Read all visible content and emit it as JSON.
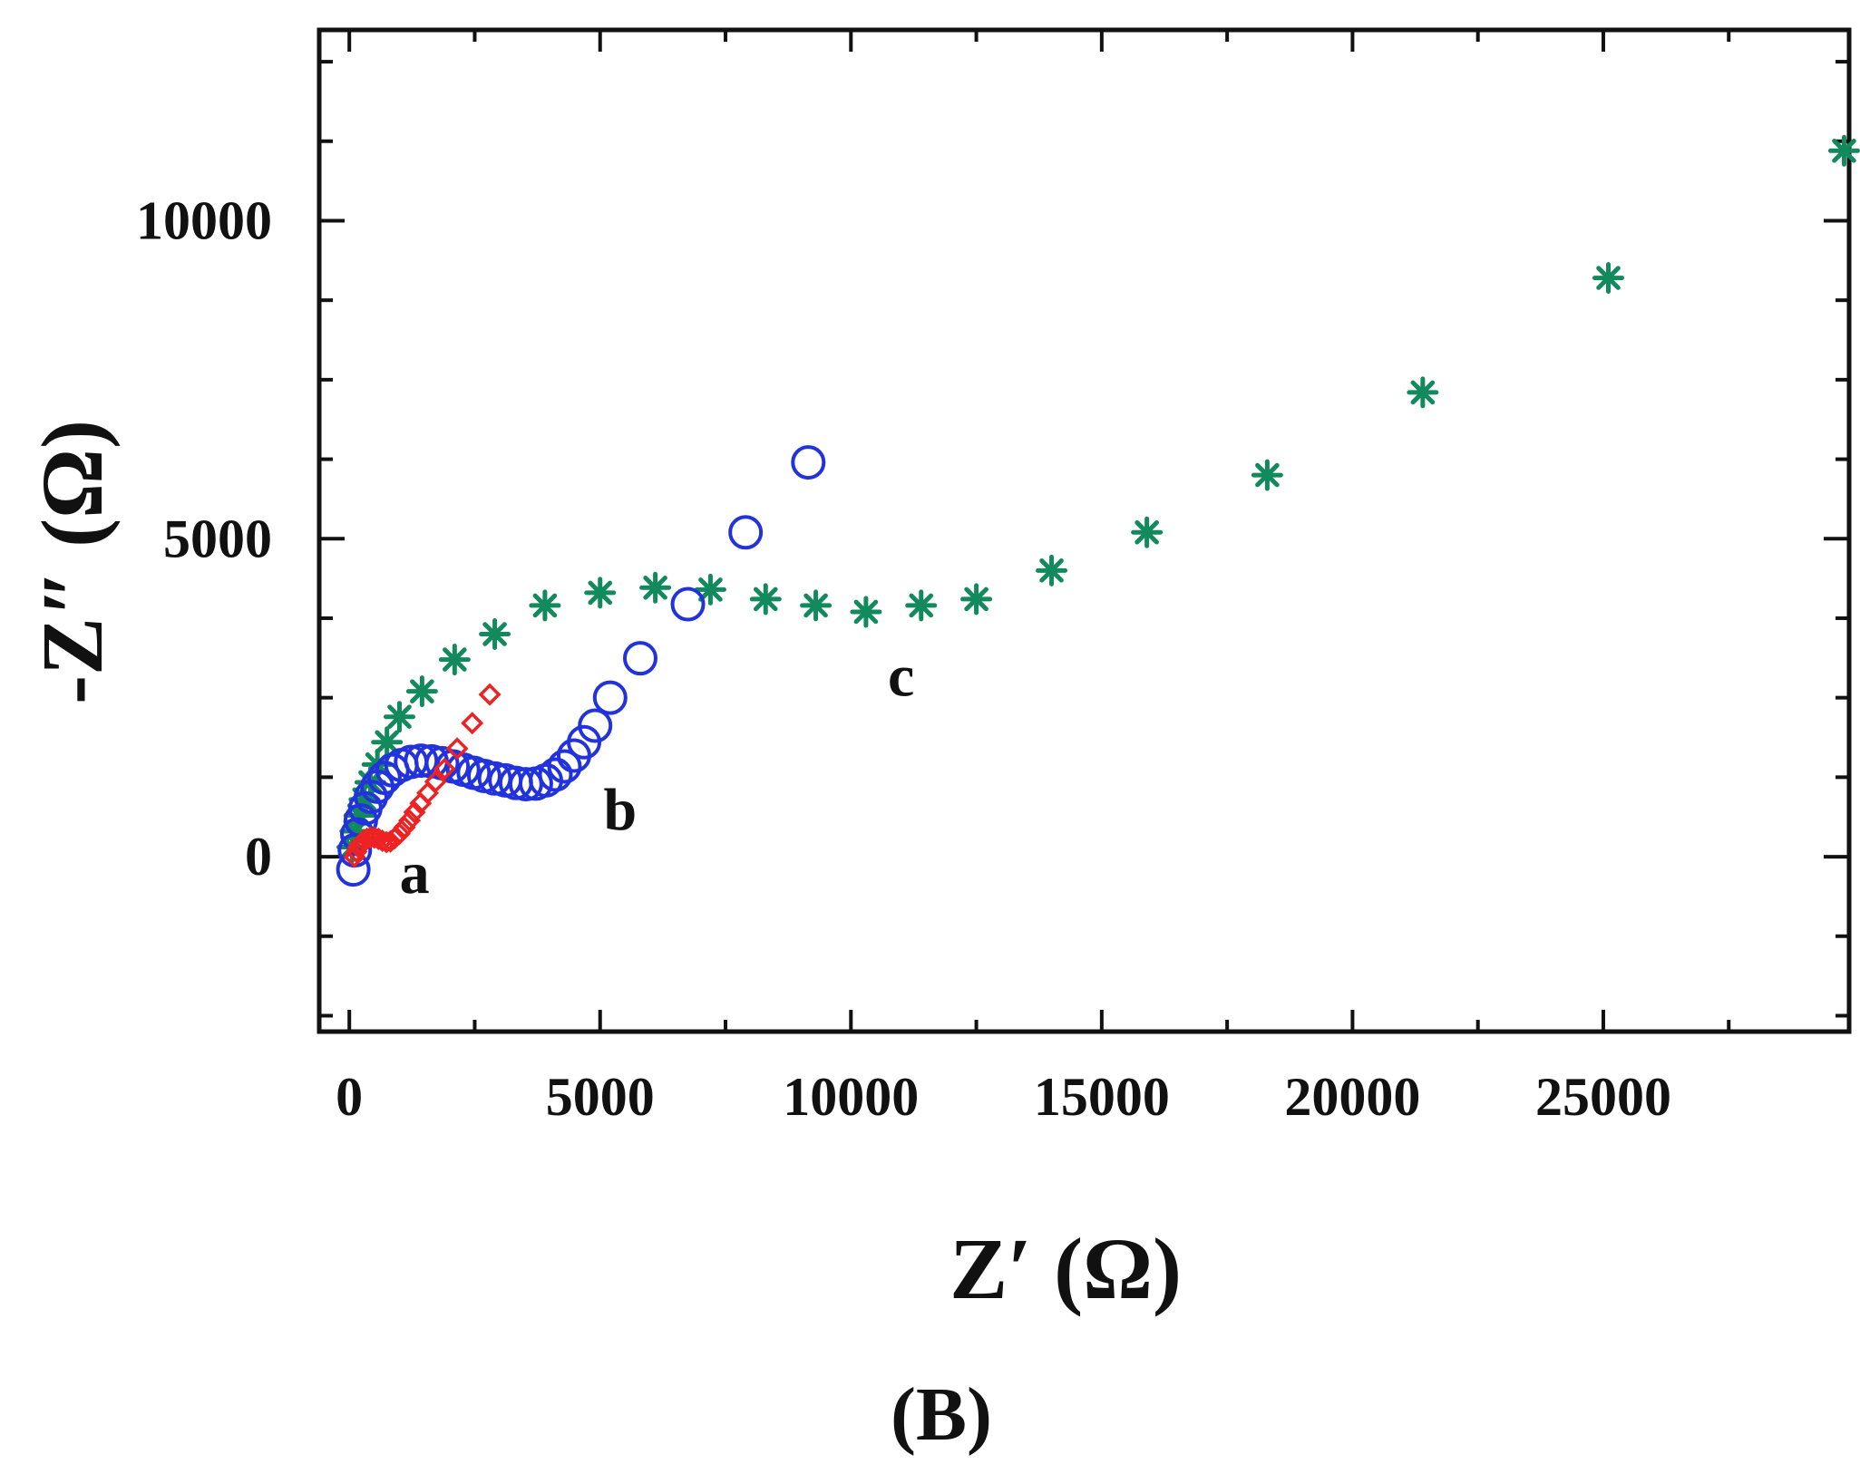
{
  "chart_data": {
    "type": "scatter",
    "title": "",
    "xlabel": "Z′ (Ω)",
    "ylabel": "-Z″ (Ω)",
    "panel_label": "(B)",
    "xlim": [
      -600,
      29900
    ],
    "ylim": [
      -2750,
      13000
    ],
    "x_ticks": [
      0,
      5000,
      10000,
      15000,
      20000,
      25000
    ],
    "x_tick_labels": [
      "0",
      "5000",
      "10000",
      "15000",
      "20000",
      "25000"
    ],
    "y_ticks": [
      0,
      5000,
      10000
    ],
    "y_tick_labels": [
      "0",
      "5000",
      "10000"
    ],
    "grid": false,
    "series": [
      {
        "name": "a",
        "marker": "diamond",
        "color": "#ee2222",
        "points": [
          [
            100,
            0
          ],
          [
            140,
            80
          ],
          [
            180,
            150
          ],
          [
            230,
            210
          ],
          [
            290,
            250
          ],
          [
            350,
            280
          ],
          [
            420,
            300
          ],
          [
            500,
            300
          ],
          [
            580,
            280
          ],
          [
            660,
            250
          ],
          [
            740,
            230
          ],
          [
            820,
            240
          ],
          [
            900,
            290
          ],
          [
            1000,
            360
          ],
          [
            1100,
            460
          ],
          [
            1200,
            570
          ],
          [
            1300,
            700
          ],
          [
            1420,
            840
          ],
          [
            1560,
            1000
          ],
          [
            1720,
            1180
          ],
          [
            1900,
            1380
          ],
          [
            2150,
            1700
          ],
          [
            2450,
            2100
          ],
          [
            2800,
            2550
          ]
        ]
      },
      {
        "name": "b",
        "marker": "circle",
        "color": "#2233dd",
        "points": [
          [
            80,
            -200
          ],
          [
            110,
            100
          ],
          [
            160,
            350
          ],
          [
            230,
            570
          ],
          [
            320,
            760
          ],
          [
            430,
            940
          ],
          [
            560,
            1100
          ],
          [
            700,
            1240
          ],
          [
            860,
            1360
          ],
          [
            1040,
            1440
          ],
          [
            1230,
            1490
          ],
          [
            1430,
            1510
          ],
          [
            1640,
            1500
          ],
          [
            1850,
            1470
          ],
          [
            2060,
            1420
          ],
          [
            2270,
            1370
          ],
          [
            2480,
            1320
          ],
          [
            2690,
            1270
          ],
          [
            2900,
            1230
          ],
          [
            3110,
            1200
          ],
          [
            3320,
            1160
          ],
          [
            3520,
            1140
          ],
          [
            3720,
            1150
          ],
          [
            3920,
            1200
          ],
          [
            4110,
            1290
          ],
          [
            4290,
            1420
          ],
          [
            4480,
            1590
          ],
          [
            4680,
            1800
          ],
          [
            4900,
            2060
          ],
          [
            5200,
            2500
          ],
          [
            5800,
            3120
          ],
          [
            6750,
            3970
          ],
          [
            7900,
            5100
          ],
          [
            9150,
            6200
          ]
        ]
      },
      {
        "name": "c",
        "marker": "asterisk",
        "color": "#138a5e",
        "points": [
          [
            60,
            150
          ],
          [
            120,
            400
          ],
          [
            200,
            650
          ],
          [
            300,
            900
          ],
          [
            420,
            1170
          ],
          [
            560,
            1450
          ],
          [
            750,
            1800
          ],
          [
            1000,
            2200
          ],
          [
            1450,
            2600
          ],
          [
            2100,
            3100
          ],
          [
            2900,
            3500
          ],
          [
            3900,
            3950
          ],
          [
            5000,
            4150
          ],
          [
            6100,
            4230
          ],
          [
            7200,
            4200
          ],
          [
            8300,
            4050
          ],
          [
            9300,
            3950
          ],
          [
            10300,
            3850
          ],
          [
            11400,
            3950
          ],
          [
            12500,
            4050
          ],
          [
            14000,
            4500
          ],
          [
            15900,
            5100
          ],
          [
            18300,
            6000
          ],
          [
            21400,
            7300
          ],
          [
            25100,
            9100
          ],
          [
            29800,
            11100
          ]
        ]
      }
    ],
    "series_labels": [
      {
        "text": "a",
        "x": 1300,
        "y": 0
      },
      {
        "text": "b",
        "x": 5400,
        "y": 1000
      },
      {
        "text": "c",
        "x": 11000,
        "y": 3100
      }
    ]
  }
}
